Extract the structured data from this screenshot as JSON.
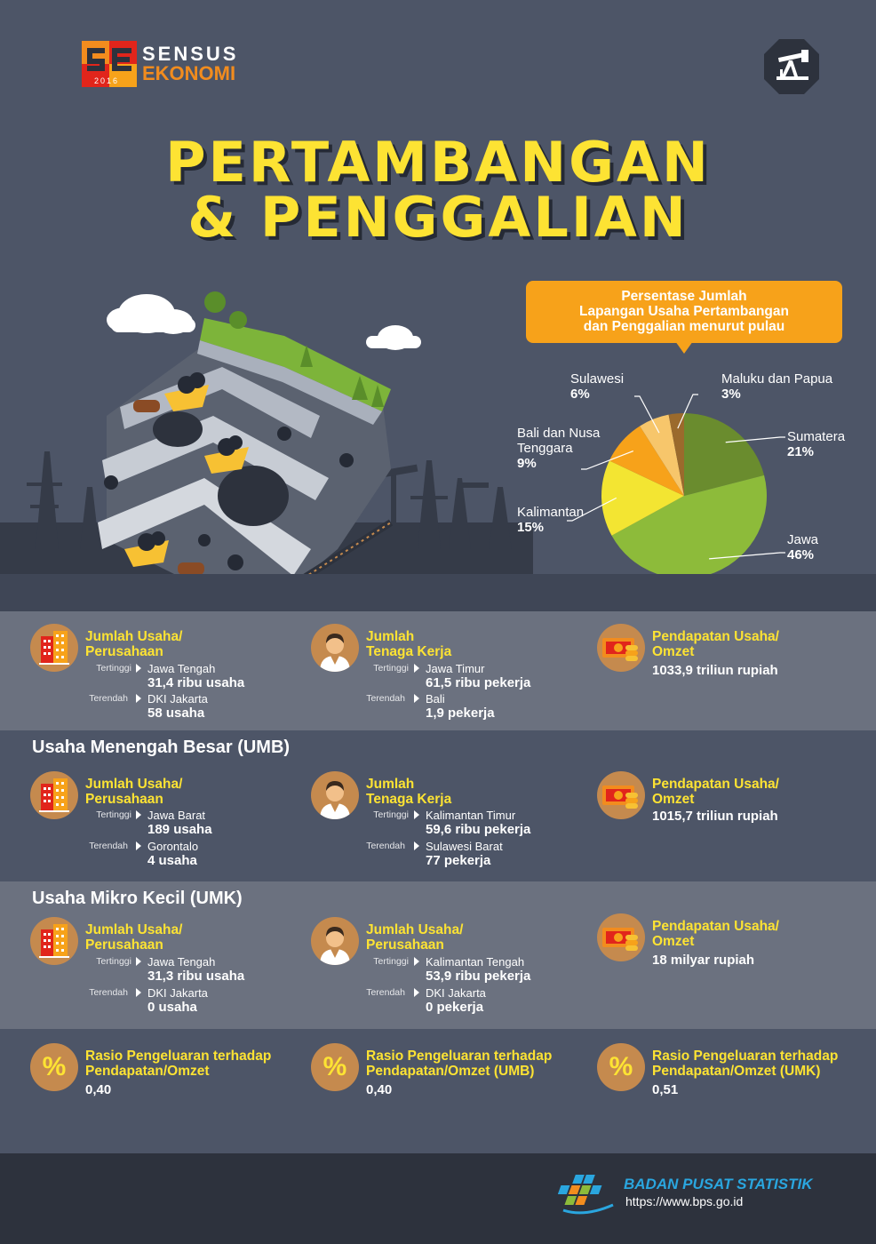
{
  "brand": {
    "word1": "SENSUS",
    "word2": "EKONOMI",
    "year": "2016"
  },
  "title": {
    "line1": "PERTAMBANGAN",
    "line2": "& PENGGALIAN"
  },
  "chart_data": {
    "type": "pie",
    "title": "Persentase Jumlah Lapangan Usaha Pertambangan dan Penggalian menurut pulau",
    "title_lines": [
      "Persentase Jumlah",
      "Lapangan Usaha Pertambangan",
      "dan Penggalian menurut pulau"
    ],
    "slices": [
      {
        "label": "Sumatera",
        "label_lines": [
          "Sumatera"
        ],
        "value": 21,
        "display": "21%",
        "color": "#6a8c2e"
      },
      {
        "label": "Jawa",
        "label_lines": [
          "Jawa"
        ],
        "value": 46,
        "display": "46%",
        "color": "#8dbb3a"
      },
      {
        "label": "Kalimantan",
        "label_lines": [
          "Kalimantan"
        ],
        "value": 15,
        "display": "15%",
        "color": "#f3e532"
      },
      {
        "label": "Bali dan Nusa Tenggara",
        "label_lines": [
          "Bali dan Nusa",
          "Tenggara"
        ],
        "value": 9,
        "display": "9%",
        "color": "#f7a21a"
      },
      {
        "label": "Sulawesi",
        "label_lines": [
          "Sulawesi"
        ],
        "value": 6,
        "display": "6%",
        "color": "#f7c66b"
      },
      {
        "label": "Maluku dan Papua",
        "label_lines": [
          "Maluku dan Papua"
        ],
        "value": 3,
        "display": "3%",
        "color": "#9b6a2c"
      }
    ]
  },
  "labels": {
    "high": "Tertinggi",
    "low": "Terendah"
  },
  "total": {
    "usaha": {
      "heading": "Jumlah Usaha/\nPerusahaan",
      "high_region": "Jawa Tengah",
      "high_value": "31,4 ribu usaha",
      "low_region": "DKI Jakarta",
      "low_value": "58 usaha"
    },
    "tenaga": {
      "heading": "Jumlah\nTenaga Kerja",
      "high_region": "Jawa Timur",
      "high_value": "61,5 ribu pekerja",
      "low_region": "Bali",
      "low_value": "1,9 pekerja"
    },
    "omzet": {
      "heading": "Pendapatan Usaha/\nOmzet",
      "value": "1033,9 triliun rupiah"
    }
  },
  "umb": {
    "section_title": "Usaha Menengah Besar (UMB)",
    "usaha": {
      "heading": "Jumlah Usaha/\nPerusahaan",
      "high_region": "Jawa Barat",
      "high_value": "189 usaha",
      "low_region": "Gorontalo",
      "low_value": "4 usaha"
    },
    "tenaga": {
      "heading": "Jumlah\nTenaga Kerja",
      "high_region": "Kalimantan Timur",
      "high_value": "59,6 ribu pekerja",
      "low_region": "Sulawesi Barat",
      "low_value": "77 pekerja"
    },
    "omzet": {
      "heading": "Pendapatan Usaha/\nOmzet",
      "value": "1015,7 triliun rupiah"
    }
  },
  "umk": {
    "section_title": "Usaha Mikro Kecil (UMK)",
    "usaha": {
      "heading": "Jumlah Usaha/\nPerusahaan",
      "high_region": "Jawa Tengah",
      "high_value": "31,3 ribu usaha",
      "low_region": "DKI Jakarta",
      "low_value": "0 usaha"
    },
    "tenaga": {
      "heading": "Jumlah Usaha/\nPerusahaan",
      "high_region": "Kalimantan Tengah",
      "high_value": "53,9 ribu pekerja",
      "low_region": "DKI Jakarta",
      "low_value": "0 pekerja"
    },
    "omzet": {
      "heading": "Pendapatan Usaha/\nOmzet",
      "value": "18 milyar rupiah"
    }
  },
  "ratio": {
    "symbol": "%",
    "all": {
      "heading": "Rasio Pengeluaran terhadap\nPendapatan/Omzet",
      "value": "0,40"
    },
    "umb": {
      "heading": "Rasio Pengeluaran terhadap\nPendapatan/Omzet (UMB)",
      "value": "0,40"
    },
    "umk": {
      "heading": "Rasio Pengeluaran terhadap\nPendapatan/Omzet (UMK)",
      "value": "0,51"
    }
  },
  "footer": {
    "org_name": "BADAN PUSAT STATISTIK",
    "url": "https://www.bps.go.id"
  }
}
